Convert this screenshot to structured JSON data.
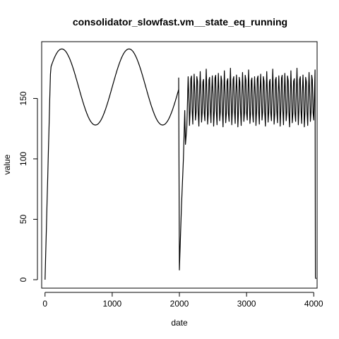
{
  "chart_data": {
    "type": "line",
    "title": "consolidator_slowfast.vm__state_eq_running",
    "xlabel": "date",
    "ylabel": "value",
    "xlim": [
      -50,
      4050
    ],
    "ylim": [
      -7,
      197
    ],
    "x_ticks": [
      0,
      1000,
      2000,
      3000,
      4000
    ],
    "y_ticks": [
      0,
      50,
      100,
      150
    ],
    "grid": false,
    "line_color": "#000000",
    "series": [
      {
        "segments": [
          {
            "description": "ramp then slow sine",
            "x_start": 0,
            "x_end": 1990,
            "x_step": 10,
            "ramp_end_x": 80,
            "ramp_end_y": 170,
            "sine_center": 159.5,
            "sine_amplitude": 31.5,
            "sine_period": 1000,
            "sine_peak_x": 250
          },
          {
            "description": "drop and recovery",
            "points": [
              [
                1990,
                167
              ],
              [
                2000,
                8
              ],
              [
                2030,
                60
              ],
              [
                2060,
                100
              ],
              [
                2080,
                140
              ],
              [
                2090,
                112
              ],
              [
                2110,
                126
              ],
              [
                2130,
                168
              ]
            ]
          },
          {
            "description": "fast oscillation",
            "x_start": 2130,
            "x_end": 4020,
            "x_step": 10,
            "high_min": 168,
            "high_max": 175,
            "low_min": 125,
            "low_max": 131,
            "period": 45
          },
          {
            "description": "final drop",
            "points": [
              [
                4020,
                170
              ],
              [
                4025,
                2
              ],
              [
                4030,
                1
              ],
              [
                4040,
                1
              ]
            ]
          }
        ]
      }
    ]
  }
}
